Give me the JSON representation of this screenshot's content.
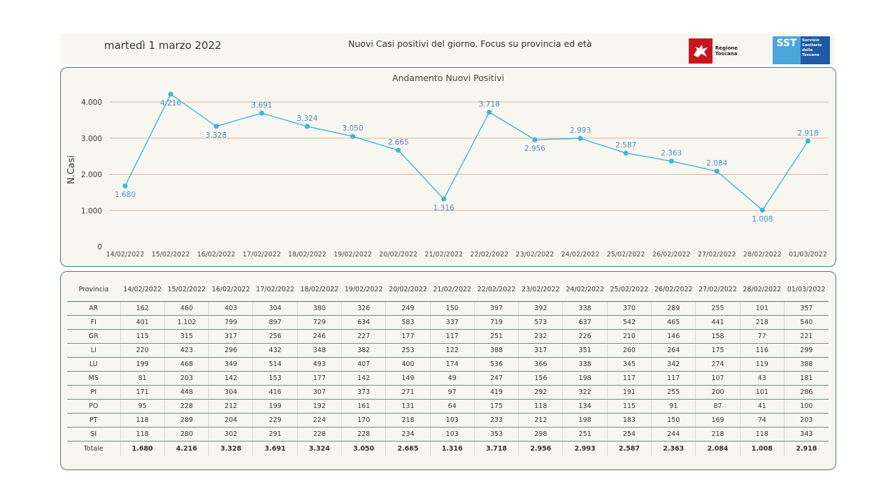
{
  "header": {
    "date": "martedì 1 marzo 2022",
    "title": "Nuovi Casi positivi del giorno. Focus su provincia ed età",
    "logo_rt_text": "Regione Toscana",
    "logo_sst_short": "SST",
    "logo_sst_text": "Servizio Sanitario della Toscana"
  },
  "chart_data": {
    "type": "line",
    "title": "Andamento Nuovi Positivi",
    "xlabel": "",
    "ylabel": "N.Casi",
    "ylim": [
      0,
      4000
    ],
    "yticks": [
      "0",
      "1.000",
      "2.000",
      "3.000",
      "4.000"
    ],
    "grid": true,
    "categories": [
      "14/02/2022",
      "15/02/2022",
      "16/02/2022",
      "17/02/2022",
      "18/02/2022",
      "19/02/2022",
      "20/02/2022",
      "21/02/2022",
      "22/02/2022",
      "23/02/2022",
      "24/02/2022",
      "25/02/2022",
      "26/02/2022",
      "27/02/2022",
      "28/02/2022",
      "01/03/2022"
    ],
    "values": [
      1680,
      4216,
      3328,
      3691,
      3324,
      3050,
      2665,
      1316,
      3718,
      2956,
      2993,
      2587,
      2363,
      2084,
      1008,
      2918
    ],
    "labels": [
      "1.680",
      "4.216",
      "3.328",
      "3.691",
      "3.324",
      "3.050",
      "2.665",
      "1.316",
      "3.718",
      "2.956",
      "2.993",
      "2.587",
      "2.363",
      "2.084",
      "1.008",
      "2.918"
    ],
    "colors": {
      "line": "#3fb6d8",
      "label": "#4a8fc4",
      "grid": "#e0b49a"
    }
  },
  "table": {
    "header_label": "Provincia",
    "dates": [
      "14/02/2022",
      "15/02/2022",
      "16/02/2022",
      "17/02/2022",
      "18/02/2022",
      "19/02/2022",
      "20/02/2022",
      "21/02/2022",
      "22/02/2022",
      "23/02/2022",
      "24/02/2022",
      "25/02/2022",
      "26/02/2022",
      "27/02/2022",
      "28/02/2022",
      "01/03/2022"
    ],
    "rows": [
      {
        "name": "AR",
        "values": [
          "162",
          "460",
          "403",
          "304",
          "380",
          "326",
          "249",
          "150",
          "397",
          "392",
          "338",
          "370",
          "289",
          "255",
          "101",
          "357"
        ]
      },
      {
        "name": "FI",
        "values": [
          "401",
          "1.102",
          "799",
          "897",
          "729",
          "634",
          "583",
          "337",
          "719",
          "573",
          "637",
          "542",
          "465",
          "441",
          "218",
          "540"
        ]
      },
      {
        "name": "GR",
        "values": [
          "115",
          "315",
          "317",
          "256",
          "246",
          "227",
          "177",
          "117",
          "251",
          "232",
          "226",
          "210",
          "146",
          "158",
          "77",
          "221"
        ]
      },
      {
        "name": "LI",
        "values": [
          "220",
          "423",
          "296",
          "432",
          "348",
          "382",
          "253",
          "122",
          "388",
          "317",
          "351",
          "260",
          "264",
          "175",
          "116",
          "299"
        ]
      },
      {
        "name": "LU",
        "values": [
          "199",
          "468",
          "349",
          "514",
          "493",
          "407",
          "400",
          "174",
          "536",
          "366",
          "338",
          "345",
          "342",
          "274",
          "119",
          "388"
        ]
      },
      {
        "name": "MS",
        "values": [
          "81",
          "203",
          "142",
          "153",
          "177",
          "142",
          "149",
          "49",
          "247",
          "156",
          "198",
          "117",
          "117",
          "107",
          "43",
          "181"
        ]
      },
      {
        "name": "PI",
        "values": [
          "171",
          "448",
          "304",
          "416",
          "307",
          "373",
          "271",
          "97",
          "419",
          "292",
          "322",
          "191",
          "255",
          "200",
          "101",
          "286"
        ]
      },
      {
        "name": "PO",
        "values": [
          "95",
          "228",
          "212",
          "199",
          "192",
          "161",
          "131",
          "64",
          "175",
          "118",
          "134",
          "115",
          "91",
          "87",
          "41",
          "100"
        ]
      },
      {
        "name": "PT",
        "values": [
          "118",
          "289",
          "204",
          "229",
          "224",
          "170",
          "218",
          "103",
          "233",
          "212",
          "198",
          "183",
          "150",
          "169",
          "74",
          "203"
        ]
      },
      {
        "name": "SI",
        "values": [
          "118",
          "280",
          "302",
          "291",
          "228",
          "228",
          "234",
          "103",
          "353",
          "298",
          "251",
          "254",
          "244",
          "218",
          "118",
          "343"
        ]
      }
    ],
    "total": {
      "name": "Totale",
      "values": [
        "1.680",
        "4.216",
        "3.328",
        "3.691",
        "3.324",
        "3.050",
        "2.665",
        "1.316",
        "3.718",
        "2.956",
        "2.993",
        "2.587",
        "2.363",
        "2.084",
        "1.008",
        "2.918"
      ]
    }
  }
}
